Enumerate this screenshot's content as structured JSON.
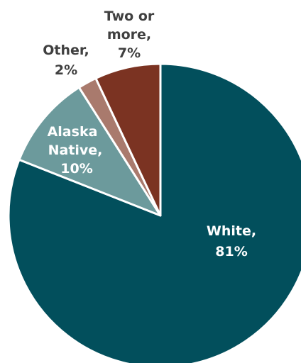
{
  "chart_data": {
    "type": "pie",
    "title": "",
    "start": "12 o'clock",
    "direction": "clockwise",
    "slices": [
      {
        "name": "White",
        "value": 81,
        "label_value": "81%",
        "color": "#024F5C",
        "label_color": "#ffffff"
      },
      {
        "name": "Alaska Native",
        "value": 10,
        "label_value": "10%",
        "color": "#6C9A9C",
        "label_color": "#ffffff"
      },
      {
        "name": "Other",
        "value": 2,
        "label_value": "2%",
        "color": "#A97A6D",
        "label_color": "#404040"
      },
      {
        "name": "Two or more",
        "value": 7,
        "label_value": "7%",
        "color": "#7B3322",
        "label_color": "#404040"
      }
    ]
  }
}
